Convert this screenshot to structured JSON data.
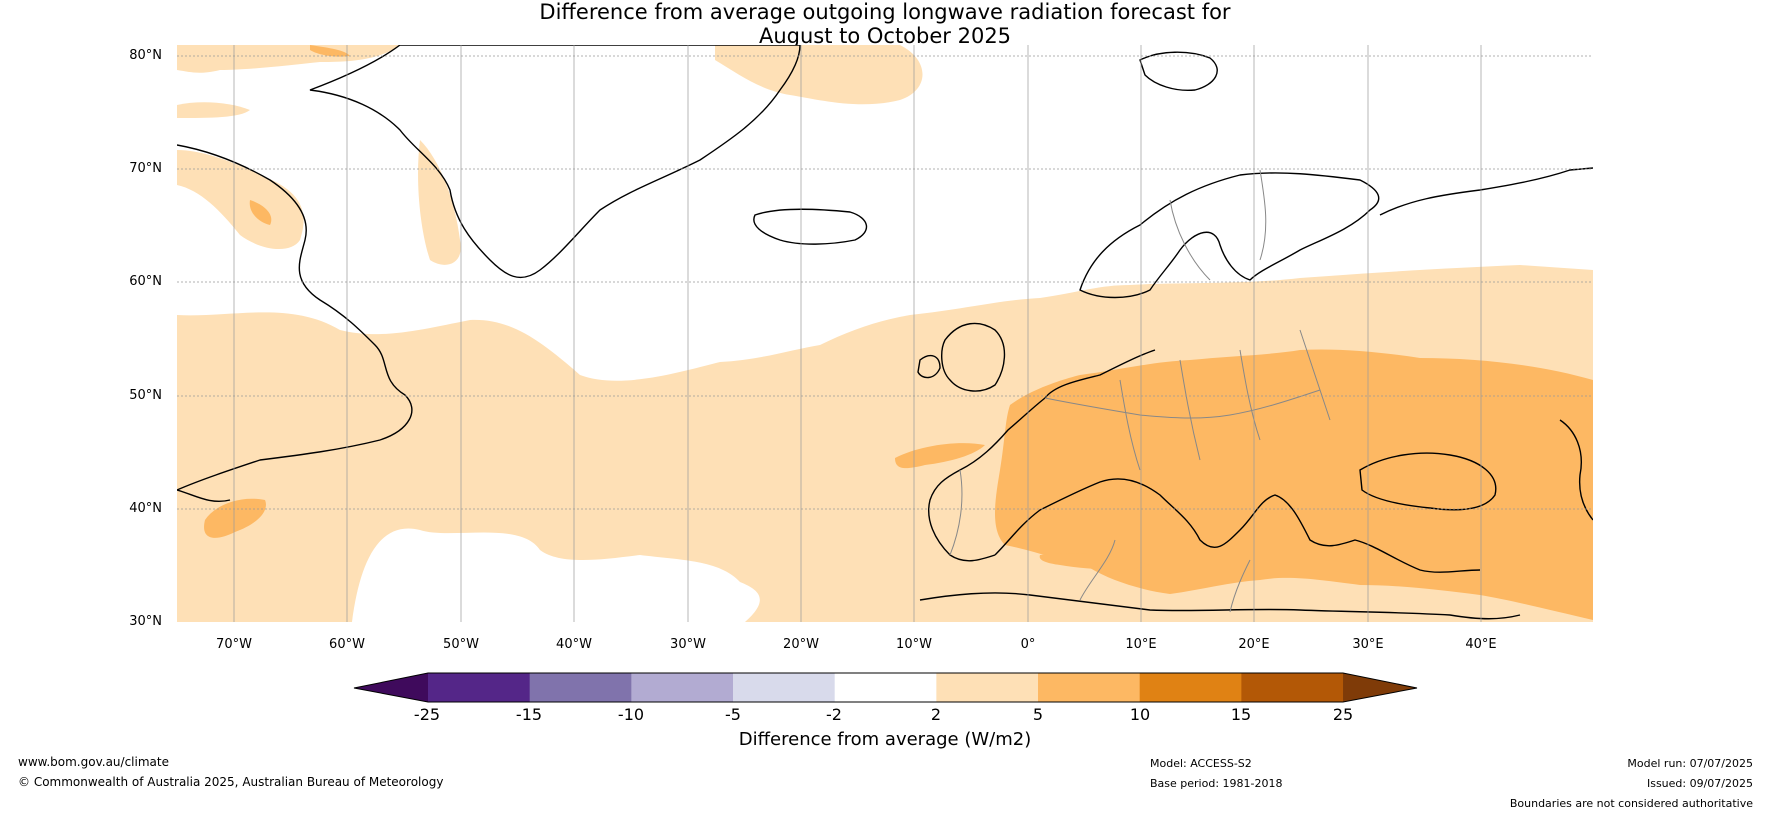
{
  "title_line1": "Difference from average outgoing longwave radiation forecast for",
  "title_line2": "August to October 2025",
  "lat_labels": [
    "80°N",
    "70°N",
    "60°N",
    "50°N",
    "40°N",
    "30°N"
  ],
  "lon_labels": [
    "70°W",
    "60°W",
    "50°W",
    "40°W",
    "30°W",
    "20°W",
    "10°W",
    "0°",
    "10°E",
    "20°E",
    "30°E",
    "40°E"
  ],
  "colorbar": {
    "ticks": [
      "-25",
      "-15",
      "-10",
      "-5",
      "-2",
      "2",
      "5",
      "10",
      "15",
      "25"
    ],
    "colors": [
      "#3f0a5c",
      "#542688",
      "#8073ac",
      "#b2abd2",
      "#d8daeb",
      "#ffffff",
      "#fee0b6",
      "#fdb863",
      "#e08214",
      "#b35806",
      "#7f3b08"
    ],
    "label": "Difference from average (W/m2)"
  },
  "map_colors": {
    "light_anomaly": "#fee0b6",
    "moderate_anomaly": "#fdb863",
    "coastline": "#000000",
    "border": "#888888",
    "gridline": "#999999"
  },
  "footer": {
    "url": "www.bom.gov.au/climate",
    "copyright": "© Commonwealth of Australia 2025, Australian Bureau of Meteorology",
    "model": "Model: ACCESS-S2",
    "base_period": "Base period: 1981-2018",
    "model_run": "Model run: 07/07/2025",
    "issued": "Issued: 09/07/2025",
    "disclaimer": "Boundaries are not considered authoritative"
  }
}
